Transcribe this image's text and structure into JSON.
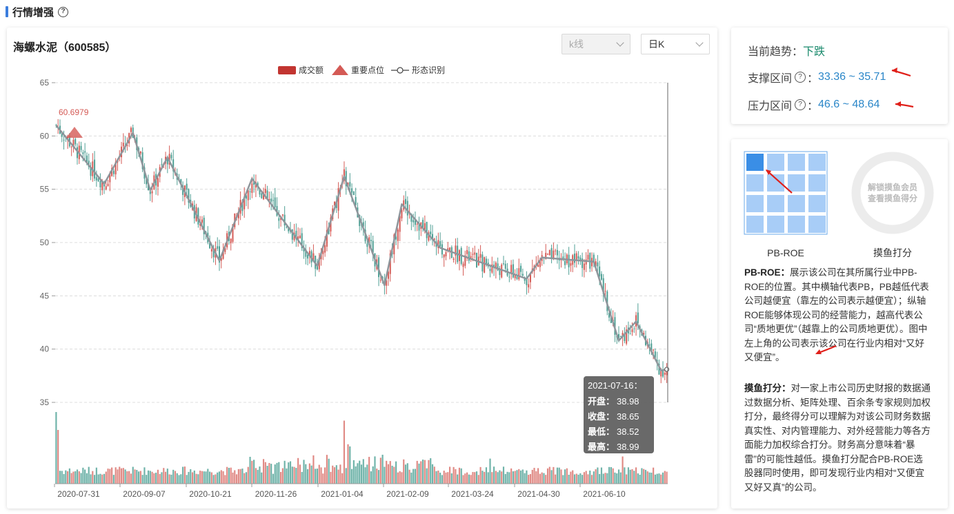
{
  "section": {
    "title": "行情增强",
    "help": "?"
  },
  "stock": {
    "title": "海螺水泥（600585）"
  },
  "controls": {
    "type_select": "k线",
    "period_select": "日K"
  },
  "legend": [
    {
      "label": "成交额",
      "icon": "red-rect-icon"
    },
    {
      "label": "重要点位",
      "icon": "red-triangle-icon"
    },
    {
      "label": "形态识别",
      "icon": "line-circle-icon"
    }
  ],
  "tooltip": {
    "date": "2021-07-16：",
    "rows": [
      {
        "label": "开盘：",
        "value": "38.98"
      },
      {
        "label": "收盘：",
        "value": "38.65"
      },
      {
        "label": "最低：",
        "value": "38.52"
      },
      {
        "label": "最高：",
        "value": "38.99"
      }
    ]
  },
  "trend": {
    "current_label": "当前趋势：",
    "current_value": "下跌",
    "support_label": "支撑区间",
    "support_value": "33.36 ~ 35.71",
    "pressure_label": "压力区间",
    "pressure_value": "46.6 ~ 48.64",
    "sep": "："
  },
  "score": {
    "pbroe_caption": "PB-ROE",
    "ring_caption": "摸鱼打分",
    "ring_line1": "解锁摸鱼会员",
    "ring_line2": "查看摸鱼得分",
    "pbroe_title": "PB-ROE：",
    "pbroe_desc": "展示该公司在其所属行业中PB-ROE的位置。其中横轴代表PB，PB越低代表公司越便宜（靠左的公司表示越便宜）；纵轴ROE能够体现公司的经营能力，越高代表公司“质地更优”（越靠上的公司质地更优）。图中左上角的公司表示该公司在行业内相对“又好又便宜”。",
    "moyu_title": "摸鱼打分：",
    "moyu_desc": "对一家上市公司历史财报的数据通过数据分析、矩阵处理、百余条专家规则加权打分，最终得分可以理解为对该公司财务数据真实性、对内管理能力、对外经营能力等各方面能力加权综合打分。财务高分意味着“暴雷”的可能性越低。摸鱼打分配合PB-ROE选股器同时使用，即可发现行业内相对“又便宜又好又真”的公司。"
  },
  "colors": {
    "up": "#d45a55",
    "down": "#4f9f94",
    "pattern": "#8e959b",
    "accent": "#3b7ddd",
    "grid_active": "#3a8ee6",
    "grid_cell": "#a8cdf7"
  },
  "chart_data": {
    "type": "candlestick",
    "ylim": [
      35,
      65
    ],
    "yticks": [
      35,
      40,
      45,
      50,
      55,
      60,
      65
    ],
    "x_ticks": [
      "2020-07-31",
      "2020-09-07",
      "2020-10-21",
      "2020-11-26",
      "2021-01-04",
      "2021-02-09",
      "2021-03-24",
      "2021-04-30",
      "2021-06-10"
    ],
    "important_point": {
      "label": "60.6979",
      "value": 60.6979
    },
    "pattern_points": [
      [
        0,
        61.0
      ],
      [
        25,
        55.5
      ],
      [
        40,
        60.3
      ],
      [
        49,
        54.9
      ],
      [
        58,
        58.0
      ],
      [
        85,
        48.3
      ],
      [
        102,
        56.0
      ],
      [
        136,
        47.8
      ],
      [
        150,
        56.2
      ],
      [
        171,
        46.0
      ],
      [
        180,
        53.6
      ],
      [
        200,
        49.5
      ],
      [
        245,
        46.6
      ],
      [
        253,
        48.6
      ],
      [
        280,
        48.2
      ],
      [
        293,
        40.8
      ],
      [
        302,
        42.6
      ],
      [
        315,
        38.0
      ],
      [
        318,
        38.1
      ]
    ],
    "volume_spikes": {
      "0": 1.0,
      "1": 0.75,
      "150": 0.88,
      "152": 0.55,
      "153": 0.52,
      "226": 0.35,
      "295": 0.38
    }
  }
}
